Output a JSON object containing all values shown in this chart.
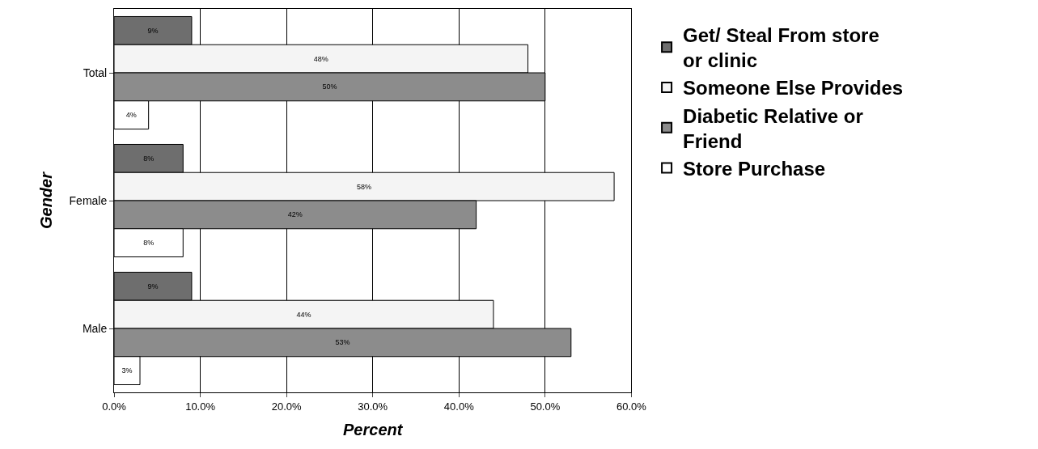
{
  "chart_data": {
    "type": "bar",
    "orientation": "horizontal",
    "xlabel": "Percent",
    "ylabel": "Gender",
    "categories": [
      "Total",
      "Female",
      "Male"
    ],
    "series": [
      {
        "name": "Get/ Steal From store or clinic",
        "color": "#6e6e6e",
        "values": [
          9,
          8,
          9
        ],
        "value_labels": [
          "9%",
          "8%",
          "9%"
        ]
      },
      {
        "name": "Someone Else Provides",
        "color": "#f4f4f4",
        "values": [
          48,
          58,
          44
        ],
        "value_labels": [
          "48%",
          "58%",
          "44%"
        ]
      },
      {
        "name": "Diabetic Relative or Friend",
        "color": "#8c8c8c",
        "values": [
          50,
          42,
          53
        ],
        "value_labels": [
          "50%",
          "42%",
          "53%"
        ]
      },
      {
        "name": "Store Purchase",
        "color": "#ffffff",
        "values": [
          4,
          8,
          3
        ],
        "value_labels": [
          "4%",
          "8%",
          "3%"
        ]
      }
    ],
    "xlim": [
      0,
      60
    ],
    "xticks": [
      {
        "value": 0,
        "label": "0.0%"
      },
      {
        "value": 10,
        "label": "10.0%"
      },
      {
        "value": 20,
        "label": "20.0%"
      },
      {
        "value": 30,
        "label": "30.0%"
      },
      {
        "value": 40,
        "label": "40.0%"
      },
      {
        "value": 50,
        "label": "50.0%"
      },
      {
        "value": 60,
        "label": "60.0%"
      }
    ],
    "grid": "x",
    "legend": "right"
  }
}
